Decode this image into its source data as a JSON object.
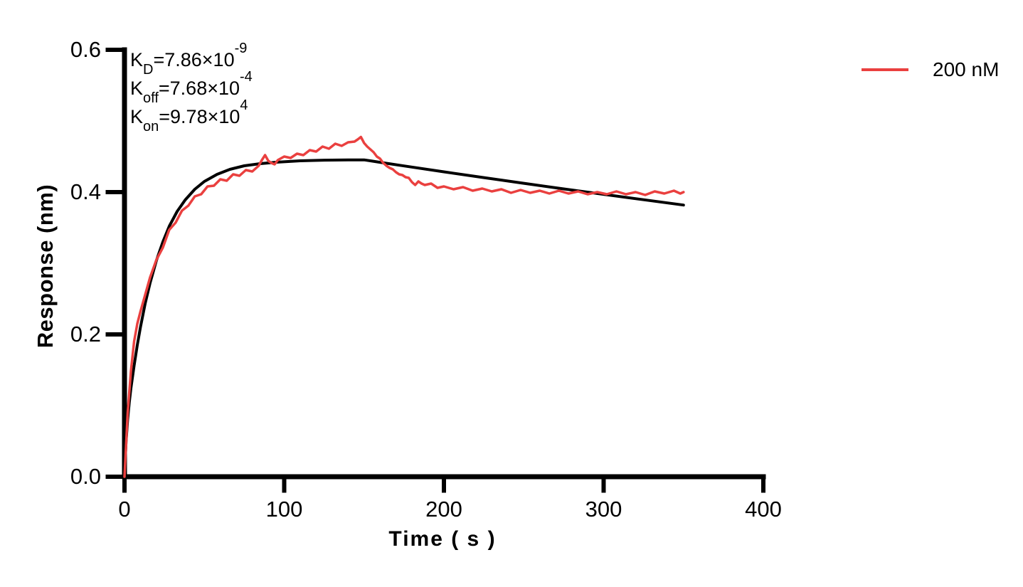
{
  "chart_data": {
    "type": "line",
    "title": "",
    "xlabel": "Time ( s )",
    "ylabel": "Response (nm)",
    "xlim": [
      0,
      400
    ],
    "ylim": [
      0,
      0.6
    ],
    "grid": false,
    "axis_color": "#000000",
    "xticks": {
      "values": [
        0,
        100,
        200,
        300,
        400
      ],
      "labels": [
        "0",
        "100",
        "200",
        "300",
        "400"
      ]
    },
    "yticks": {
      "values": [
        0,
        0.2,
        0.4,
        0.6
      ],
      "labels": [
        "0.0",
        "0.2",
        "0.4",
        "0.6"
      ]
    },
    "legend": {
      "position": "top-right",
      "entries": [
        {
          "label": "200 nM",
          "color": "#EA403F"
        }
      ]
    },
    "annotations": {
      "kd": {
        "base": "K",
        "sub": "D",
        "mid": "=7.86×10",
        "sup": "-9"
      },
      "koff": {
        "base": "K",
        "sub": "off",
        "mid": "=7.68×10",
        "sup": "-4"
      },
      "kon": {
        "base": "K",
        "sub": "on",
        "mid": "=9.78×10",
        "sup": "4"
      }
    },
    "series": [
      {
        "name": "fit",
        "role": "fitted-curve",
        "color": "#000000",
        "width": 4,
        "points": [
          [
            0,
            0
          ],
          [
            1,
            0.049
          ],
          [
            2,
            0.081
          ],
          [
            3,
            0.104
          ],
          [
            4,
            0.124
          ],
          [
            6,
            0.156
          ],
          [
            8,
            0.185
          ],
          [
            10,
            0.21
          ],
          [
            13,
            0.244
          ],
          [
            16,
            0.272
          ],
          [
            20,
            0.304
          ],
          [
            24,
            0.33
          ],
          [
            28,
            0.352
          ],
          [
            33,
            0.373
          ],
          [
            38,
            0.389
          ],
          [
            44,
            0.404
          ],
          [
            50,
            0.415
          ],
          [
            58,
            0.425
          ],
          [
            66,
            0.432
          ],
          [
            75,
            0.437
          ],
          [
            85,
            0.44
          ],
          [
            95,
            0.442
          ],
          [
            110,
            0.444
          ],
          [
            125,
            0.4449
          ],
          [
            140,
            0.4452
          ],
          [
            150,
            0.4453
          ],
          [
            155,
            0.4436
          ],
          [
            160,
            0.4419
          ],
          [
            175,
            0.4368
          ],
          [
            200,
            0.4285
          ],
          [
            225,
            0.4204
          ],
          [
            250,
            0.4124
          ],
          [
            275,
            0.4045
          ],
          [
            300,
            0.3969
          ],
          [
            325,
            0.3893
          ],
          [
            350,
            0.3818
          ]
        ]
      },
      {
        "name": "200 nM",
        "role": "measured-trace",
        "color": "#EA403F",
        "width": 3.5,
        "points": [
          [
            0,
            0
          ],
          [
            2,
            0.09
          ],
          [
            4,
            0.148
          ],
          [
            6,
            0.19
          ],
          [
            8,
            0.215
          ],
          [
            10,
            0.232
          ],
          [
            12,
            0.248
          ],
          [
            16,
            0.28
          ],
          [
            20,
            0.305
          ],
          [
            24,
            0.322
          ],
          [
            28,
            0.347
          ],
          [
            32,
            0.357
          ],
          [
            36,
            0.374
          ],
          [
            40,
            0.381
          ],
          [
            44,
            0.394
          ],
          [
            48,
            0.397
          ],
          [
            52,
            0.408
          ],
          [
            56,
            0.409
          ],
          [
            60,
            0.418
          ],
          [
            64,
            0.416
          ],
          [
            68,
            0.425
          ],
          [
            72,
            0.423
          ],
          [
            76,
            0.431
          ],
          [
            80,
            0.429
          ],
          [
            84,
            0.437
          ],
          [
            86,
            0.445
          ],
          [
            88,
            0.452
          ],
          [
            90,
            0.444
          ],
          [
            92,
            0.441
          ],
          [
            94,
            0.439
          ],
          [
            96,
            0.445
          ],
          [
            100,
            0.45
          ],
          [
            104,
            0.448
          ],
          [
            108,
            0.454
          ],
          [
            112,
            0.452
          ],
          [
            116,
            0.459
          ],
          [
            120,
            0.457
          ],
          [
            124,
            0.464
          ],
          [
            128,
            0.461
          ],
          [
            132,
            0.468
          ],
          [
            136,
            0.465
          ],
          [
            140,
            0.47
          ],
          [
            144,
            0.471
          ],
          [
            146,
            0.474
          ],
          [
            148,
            0.4775
          ],
          [
            150,
            0.469
          ],
          [
            152,
            0.464
          ],
          [
            154,
            0.46
          ],
          [
            156,
            0.456
          ],
          [
            158,
            0.45
          ],
          [
            160,
            0.447
          ],
          [
            162,
            0.441
          ],
          [
            164,
            0.437
          ],
          [
            166,
            0.434
          ],
          [
            168,
            0.432
          ],
          [
            170,
            0.428
          ],
          [
            172,
            0.425
          ],
          [
            174,
            0.424
          ],
          [
            176,
            0.421
          ],
          [
            178,
            0.42
          ],
          [
            180,
            0.414
          ],
          [
            182,
            0.41
          ],
          [
            184,
            0.415
          ],
          [
            186,
            0.412
          ],
          [
            188,
            0.41
          ],
          [
            192,
            0.412
          ],
          [
            196,
            0.406
          ],
          [
            200,
            0.408
          ],
          [
            206,
            0.404
          ],
          [
            212,
            0.407
          ],
          [
            218,
            0.402
          ],
          [
            224,
            0.405
          ],
          [
            230,
            0.401
          ],
          [
            236,
            0.404
          ],
          [
            242,
            0.399
          ],
          [
            248,
            0.403
          ],
          [
            254,
            0.399
          ],
          [
            260,
            0.402
          ],
          [
            266,
            0.398
          ],
          [
            272,
            0.402
          ],
          [
            278,
            0.398
          ],
          [
            284,
            0.401
          ],
          [
            290,
            0.397
          ],
          [
            296,
            0.4
          ],
          [
            302,
            0.397
          ],
          [
            308,
            0.401
          ],
          [
            314,
            0.397
          ],
          [
            320,
            0.4
          ],
          [
            326,
            0.396
          ],
          [
            332,
            0.401
          ],
          [
            338,
            0.398
          ],
          [
            344,
            0.402
          ],
          [
            348,
            0.398
          ],
          [
            350,
            0.4
          ]
        ]
      }
    ]
  }
}
